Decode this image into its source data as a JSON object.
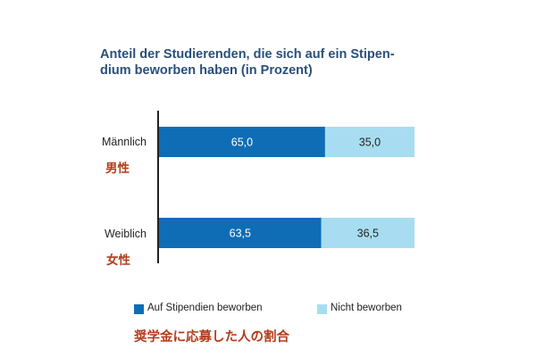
{
  "chart_data": {
    "type": "bar",
    "orientation": "horizontal",
    "stacked": true,
    "title": "Anteil der Studierenden, die sich auf ein Stipendium beworben haben (in Prozent)",
    "title_lines": [
      "Anteil der Studierenden, die sich auf ein Stipen-",
      "dium beworben haben (in Prozent)"
    ],
    "categories": [
      "Männlich",
      "Weiblich"
    ],
    "categories_ja": [
      "男性",
      "女性"
    ],
    "series": [
      {
        "name": "Auf Stipendien beworben",
        "values": [
          65.0,
          63.5
        ],
        "labels": [
          "65,0",
          "63,5"
        ],
        "color": "#0f6db5",
        "label_color": "#ffffff"
      },
      {
        "name": "Nicht beworben",
        "values": [
          35.0,
          36.5
        ],
        "labels": [
          "35,0",
          "36,5"
        ],
        "color": "#a8ddf1",
        "label_color": "#222222"
      }
    ],
    "xlim": [
      0,
      100
    ],
    "grid": false,
    "legend_position": "bottom"
  },
  "caption_ja": "奨学金に応募した人の割合"
}
